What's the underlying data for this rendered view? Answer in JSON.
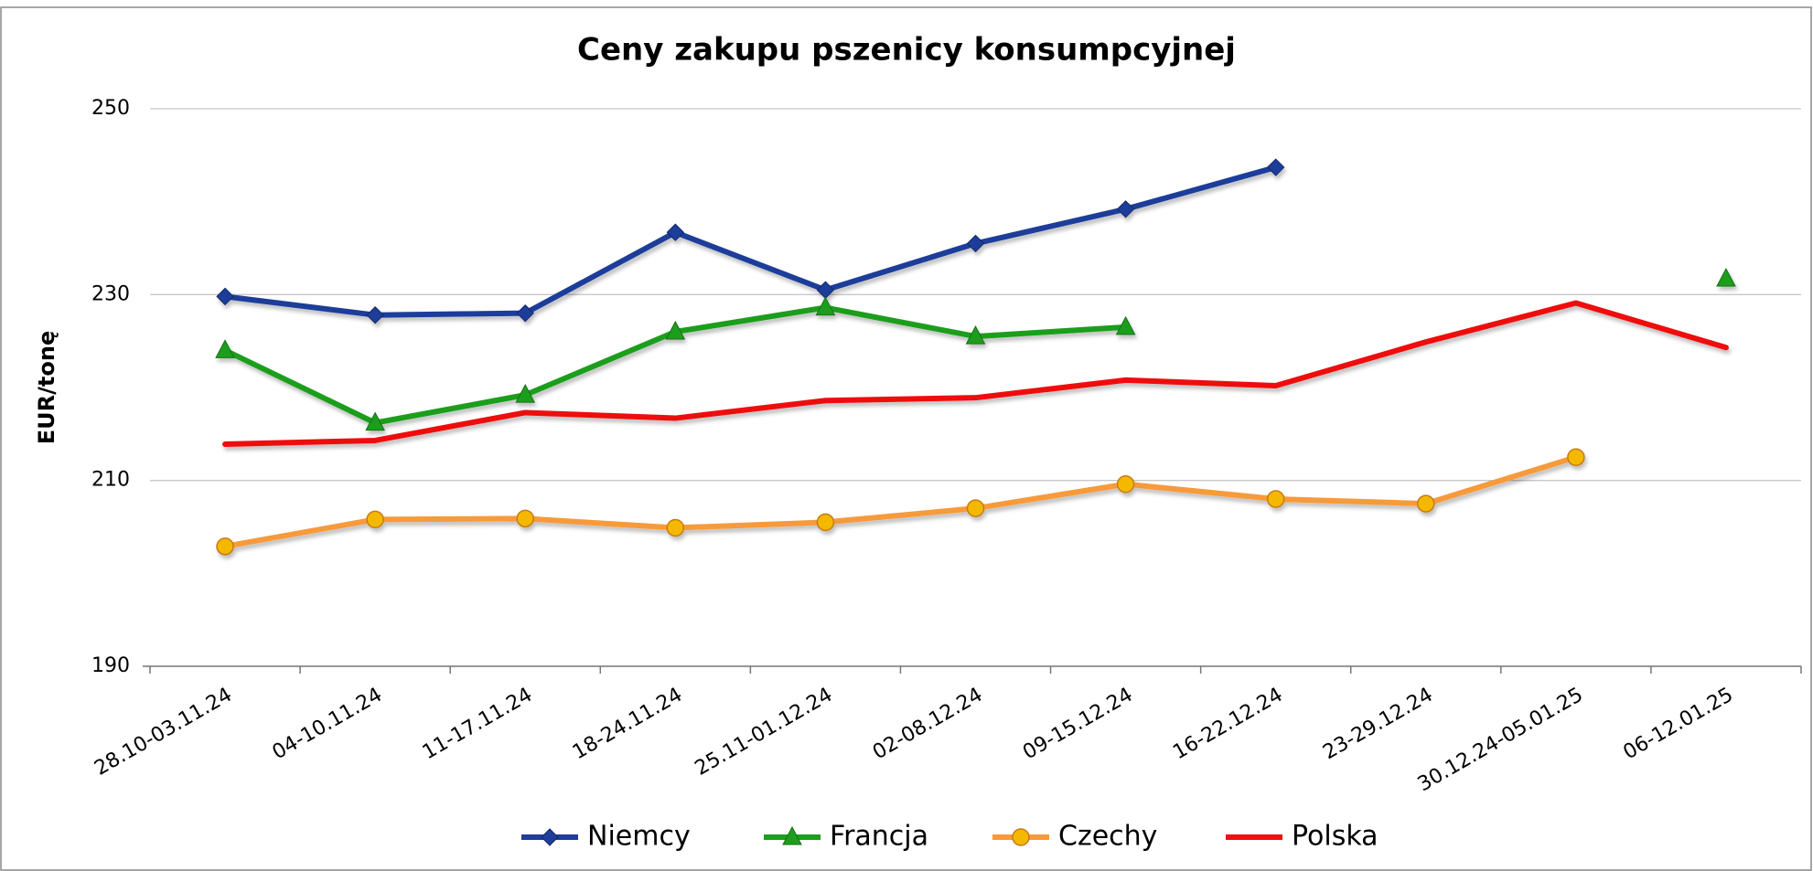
{
  "chart_data": {
    "type": "line",
    "title": "Ceny zakupu pszenicy konsumpcyjnej",
    "y_label": "EUR/tonę",
    "categories": [
      "28.10-03.11.24",
      "04-10.11.24",
      "11-17.11.24",
      "18-24.11.24",
      "25.11-01.12.24",
      "02-08.12.24",
      "09-15.12.24",
      "16-22.12.24",
      "23-29.12.24",
      "30.12.24-05.01.25",
      "06-12.01.25"
    ],
    "series": [
      {
        "name": "Niemcy",
        "color": "#1f3d99",
        "marker": "diamond",
        "values": [
          229.8,
          227.8,
          228.0,
          236.7,
          230.5,
          235.5,
          239.2,
          243.7,
          null,
          null,
          null
        ]
      },
      {
        "name": "Francja",
        "color": "#1e9e1e",
        "marker": "triangle",
        "values": [
          224.0,
          216.2,
          219.2,
          226.0,
          228.6,
          225.5,
          226.5,
          null,
          null,
          null,
          231.7
        ]
      },
      {
        "name": "Czechy",
        "color": "#f79a3a",
        "marker": "circle",
        "values": [
          202.9,
          205.8,
          205.9,
          204.9,
          205.5,
          207.0,
          209.6,
          208.0,
          207.5,
          212.5,
          null
        ]
      },
      {
        "name": "Polska",
        "color": "#ee1111",
        "marker": "none",
        "values": [
          213.9,
          214.3,
          217.3,
          216.7,
          218.6,
          218.9,
          220.8,
          220.2,
          224.9,
          229.1,
          224.3
        ]
      }
    ],
    "ylim": [
      190,
      250
    ],
    "yticks": [
      190,
      210,
      230,
      250
    ],
    "grid": true,
    "legend": "bottom"
  }
}
